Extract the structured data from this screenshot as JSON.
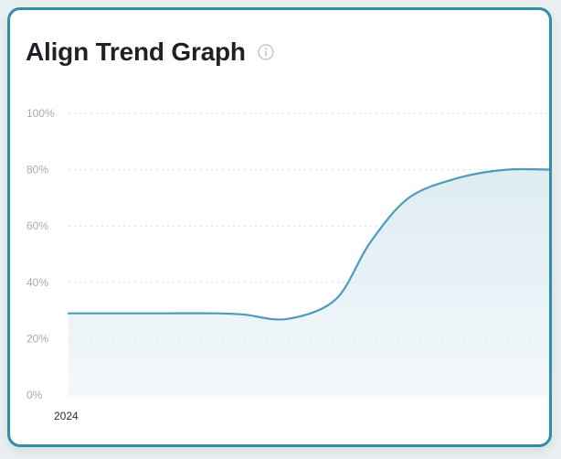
{
  "card": {
    "title": "Align Trend Graph",
    "info_icon": "info-circle-icon"
  },
  "colors": {
    "border": "#2f8fa8",
    "line": "#4f9bbb",
    "fill": "#dcebf2",
    "grid": "#d9dcde"
  },
  "chart_data": {
    "type": "area",
    "title": "Align Trend Graph",
    "xlabel": "",
    "ylabel": "",
    "x_tick_labels": [
      "2024"
    ],
    "y_tick_labels": [
      "0%",
      "20%",
      "40%",
      "60%",
      "80%",
      "100%"
    ],
    "y_ticks": [
      0,
      20,
      40,
      60,
      80,
      100
    ],
    "ylim": [
      0,
      100
    ],
    "xlim": [
      0,
      10
    ],
    "grid": true,
    "grid_style": "dotted",
    "legend": "none",
    "series": [
      {
        "x": [
          0,
          1,
          2,
          3,
          3.6,
          4.5,
          5.5,
          6.2,
          7,
          8,
          9,
          10
        ],
        "values": [
          29,
          29,
          29,
          29,
          28.6,
          27,
          34,
          54,
          70,
          77,
          80,
          80
        ]
      }
    ]
  }
}
